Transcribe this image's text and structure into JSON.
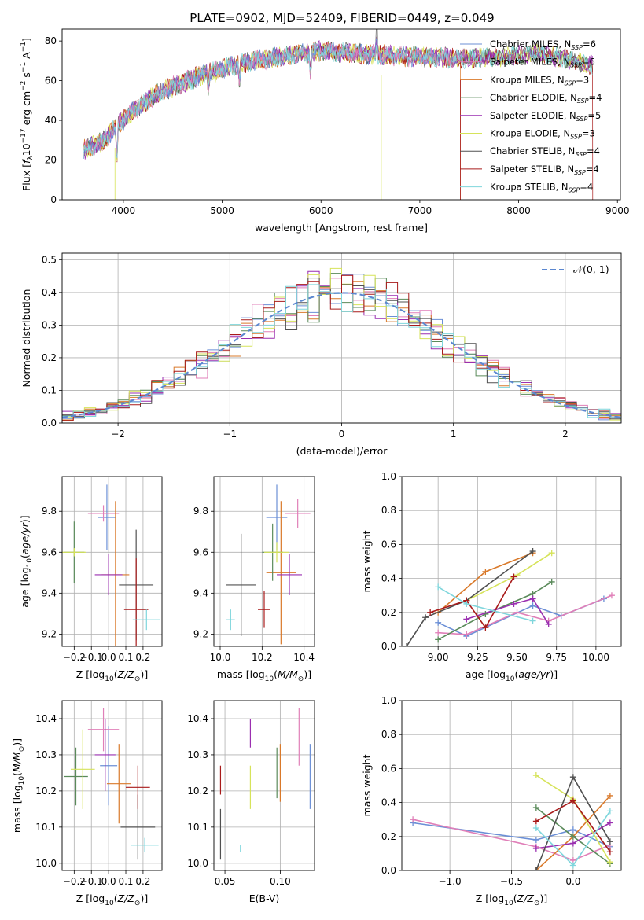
{
  "figure": {
    "title": "PLATE=0902, MJD=52409, FIBERID=0449, z=0.049"
  },
  "colors": {
    "Chabrier MILES": "#6b8fd6",
    "Salpeter MILES": "#e07fb8",
    "Kroupa MILES": "#d9792a",
    "Chabrier ELODIE": "#5a8a5a",
    "Salpeter ELODIE": "#9a2fb0",
    "Kroupa ELODIE": "#d6e35a",
    "Chabrier STELIB": "#505050",
    "Salpeter STELIB": "#a81a1a",
    "Kroupa STELIB": "#7fd6dc"
  },
  "chart_data": [
    {
      "id": "spectrum",
      "type": "line",
      "xlabel": "wavelength [Angstrom, rest frame]",
      "ylabel_main": "Flux [",
      "xlim": [
        3380,
        9030
      ],
      "ylim": [
        0,
        86
      ],
      "xticks": [
        4000,
        5000,
        6000,
        7000,
        8000,
        9000
      ],
      "yticks": [
        0,
        20,
        40,
        60,
        80
      ],
      "grid": false,
      "legend": "top-right",
      "legend_entries": [
        {
          "model": "Chabrier MILES",
          "label": "Chabrier MILES, N",
          "nssp": "6"
        },
        {
          "model": "Salpeter MILES",
          "label": "Salpeter MILES, N",
          "nssp": "6"
        },
        {
          "model": "Kroupa MILES",
          "label": "Kroupa MILES, N",
          "nssp": "3"
        },
        {
          "model": "Chabrier ELODIE",
          "label": "Chabrier ELODIE, N",
          "nssp": "4"
        },
        {
          "model": "Salpeter ELODIE",
          "label": "Salpeter ELODIE, N",
          "nssp": "5"
        },
        {
          "model": "Kroupa ELODIE",
          "label": "Kroupa ELODIE, N",
          "nssp": "3"
        },
        {
          "model": "Chabrier STELIB",
          "label": "Chabrier STELIB, N",
          "nssp": "4"
        },
        {
          "model": "Salpeter STELIB",
          "label": "Salpeter STELIB, N",
          "nssp": "4"
        },
        {
          "model": "Kroupa STELIB",
          "label": "Kroupa STELIB, N",
          "nssp": "4"
        }
      ],
      "continuum": {
        "x": [
          3600,
          3800,
          3950,
          4100,
          4300,
          4500,
          4800,
          5000,
          5300,
          5600,
          6000,
          6300,
          6600,
          7000,
          7400,
          7800,
          8200,
          8500,
          8700
        ],
        "y": [
          25,
          30,
          38,
          45,
          52,
          57,
          63,
          66,
          70,
          72,
          75,
          74,
          73,
          72,
          71,
          72,
          74,
          71,
          68
        ]
      },
      "features": [
        {
          "x": 3934,
          "depth": 18
        },
        {
          "x": 4861,
          "depth": 8
        },
        {
          "x": 5175,
          "depth": 10
        },
        {
          "x": 5893,
          "depth": 12
        },
        {
          "x": 6563,
          "depth": -20
        }
      ]
    },
    {
      "id": "residuals",
      "type": "histogram",
      "xlabel": "(data-model)/error",
      "ylabel": "Normed distribution",
      "xlim": [
        -2.5,
        2.5
      ],
      "ylim": [
        0,
        0.52
      ],
      "xticks": [
        -2,
        -1,
        0,
        1,
        2
      ],
      "yticks": [
        0,
        0.1,
        0.2,
        0.3,
        0.4,
        0.5
      ],
      "grid": true,
      "legend": "top-right",
      "reference_label": "𝒩(0, 1)",
      "bin_width": 0.1
    },
    {
      "id": "age-vs-Z",
      "type": "scatter",
      "xlabel": "Z [log",
      "ylabel": "age  [log",
      "xlim": [
        -0.27,
        0.31
      ],
      "ylim": [
        9.14,
        9.97
      ],
      "xticks": [
        -0.2,
        -0.1,
        0.0,
        0.1,
        0.2
      ],
      "yticks": [
        9.2,
        9.4,
        9.6,
        9.8
      ],
      "grid": true,
      "points": [
        {
          "model": "Chabrier MILES",
          "x": -0.01,
          "xerr": 0.05,
          "y": 9.77,
          "yerr": 0.16
        },
        {
          "model": "Salpeter MILES",
          "x": -0.03,
          "xerr": 0.09,
          "y": 9.79,
          "yerr": 0.04
        },
        {
          "model": "Kroupa MILES",
          "x": 0.04,
          "xerr": 0.08,
          "y": 9.49,
          "yerr": 0.36
        },
        {
          "model": "Chabrier ELODIE",
          "x": -0.2,
          "xerr": 0.06,
          "y": 9.6,
          "yerr": 0.15
        },
        {
          "model": "Salpeter ELODIE",
          "x": 0.0,
          "xerr": 0.08,
          "y": 9.49,
          "yerr": 0.1
        },
        {
          "model": "Kroupa ELODIE",
          "x": -0.2,
          "xerr": 0.07,
          "y": 9.6,
          "yerr": 0.02
        },
        {
          "model": "Chabrier STELIB",
          "x": 0.16,
          "xerr": 0.1,
          "y": 9.44,
          "yerr": 0.27
        },
        {
          "model": "Salpeter STELIB",
          "x": 0.16,
          "xerr": 0.07,
          "y": 9.32,
          "yerr": 0.25
        },
        {
          "model": "Kroupa STELIB",
          "x": 0.22,
          "xerr": 0.08,
          "y": 9.27,
          "yerr": 0.05
        }
      ]
    },
    {
      "id": "age-vs-mass",
      "type": "scatter",
      "xlabel": "mass [log",
      "ylabel": "",
      "xlim": [
        9.97,
        10.45
      ],
      "ylim": [
        9.14,
        9.97
      ],
      "xticks": [
        10.0,
        10.2,
        10.4
      ],
      "yticks": [
        9.2,
        9.4,
        9.6,
        9.8
      ],
      "grid": true,
      "points": [
        {
          "model": "Chabrier MILES",
          "x": 10.27,
          "xerr": 0.05,
          "y": 9.77,
          "yerr": 0.16
        },
        {
          "model": "Salpeter MILES",
          "x": 10.37,
          "xerr": 0.06,
          "y": 9.79,
          "yerr": 0.07
        },
        {
          "model": "Kroupa MILES",
          "x": 10.29,
          "xerr": 0.07,
          "y": 9.5,
          "yerr": 0.35
        },
        {
          "model": "Chabrier ELODIE",
          "x": 10.25,
          "xerr": 0.05,
          "y": 9.6,
          "yerr": 0.14
        },
        {
          "model": "Salpeter ELODIE",
          "x": 10.33,
          "xerr": 0.06,
          "y": 9.49,
          "yerr": 0.1
        },
        {
          "model": "Kroupa ELODIE",
          "x": 10.27,
          "xerr": 0.06,
          "y": 9.6,
          "yerr": 0.05
        },
        {
          "model": "Chabrier STELIB",
          "x": 10.1,
          "xerr": 0.07,
          "y": 9.44,
          "yerr": 0.25
        },
        {
          "model": "Salpeter STELIB",
          "x": 10.21,
          "xerr": 0.03,
          "y": 9.32,
          "yerr": 0.09
        },
        {
          "model": "Kroupa STELIB",
          "x": 10.05,
          "xerr": 0.02,
          "y": 9.27,
          "yerr": 0.05
        }
      ]
    },
    {
      "id": "mass-weight-vs-age",
      "type": "line",
      "xlabel": "age  [log",
      "ylabel": "mass weight",
      "xlim": [
        8.77,
        10.16
      ],
      "ylim": [
        0,
        1
      ],
      "xticks": [
        9.0,
        9.25,
        9.5,
        9.75,
        10.0
      ],
      "yticks": [
        0.0,
        0.2,
        0.4,
        0.6,
        0.8,
        1.0
      ],
      "grid": true,
      "series": [
        {
          "model": "Chabrier MILES",
          "x": [
            9.0,
            9.18,
            9.6,
            9.78,
            10.05
          ],
          "y": [
            0.14,
            0.06,
            0.24,
            0.18,
            0.28
          ]
        },
        {
          "model": "Salpeter MILES",
          "x": [
            9.0,
            9.18,
            9.5,
            9.7,
            10.1
          ],
          "y": [
            0.08,
            0.07,
            0.2,
            0.15,
            0.3
          ]
        },
        {
          "model": "Kroupa MILES",
          "x": [
            9.0,
            9.3,
            9.6
          ],
          "y": [
            0.2,
            0.44,
            0.55
          ]
        },
        {
          "model": "Chabrier ELODIE",
          "x": [
            9.0,
            9.3,
            9.6,
            9.72
          ],
          "y": [
            0.04,
            0.19,
            0.31,
            0.38
          ]
        },
        {
          "model": "Salpeter ELODIE",
          "x": [
            9.18,
            9.48,
            9.6,
            9.7
          ],
          "y": [
            0.16,
            0.25,
            0.28,
            0.13
          ]
        },
        {
          "model": "Kroupa ELODIE",
          "x": [
            9.18,
            9.5,
            9.72
          ],
          "y": [
            0.27,
            0.42,
            0.55
          ]
        },
        {
          "model": "Chabrier STELIB",
          "x": [
            8.8,
            8.92,
            9.18,
            9.6
          ],
          "y": [
            0.0,
            0.17,
            0.27,
            0.56
          ]
        },
        {
          "model": "Salpeter STELIB",
          "x": [
            8.95,
            9.18,
            9.3,
            9.48
          ],
          "y": [
            0.2,
            0.27,
            0.11,
            0.41
          ]
        },
        {
          "model": "Kroupa STELIB",
          "x": [
            9.0,
            9.18,
            9.6
          ],
          "y": [
            0.35,
            0.25,
            0.15
          ]
        }
      ]
    },
    {
      "id": "mass-vs-Z",
      "type": "scatter",
      "xlabel": "Z [log",
      "ylabel": "mass [log",
      "xlim": [
        -0.27,
        0.31
      ],
      "ylim": [
        9.98,
        10.45
      ],
      "xticks": [
        -0.2,
        -0.1,
        0.0,
        0.1,
        0.2
      ],
      "yticks": [
        10.0,
        10.1,
        10.2,
        10.3,
        10.4
      ],
      "grid": true,
      "points": [
        {
          "model": "Chabrier MILES",
          "x": 0.0,
          "xerr": 0.05,
          "y": 10.27,
          "yerr": 0.11
        },
        {
          "model": "Salpeter MILES",
          "x": -0.03,
          "xerr": 0.09,
          "y": 10.37,
          "yerr": 0.06
        },
        {
          "model": "Kroupa MILES",
          "x": 0.06,
          "xerr": 0.07,
          "y": 10.22,
          "yerr": 0.11
        },
        {
          "model": "Chabrier ELODIE",
          "x": -0.19,
          "xerr": 0.07,
          "y": 10.24,
          "yerr": 0.08
        },
        {
          "model": "Salpeter ELODIE",
          "x": -0.02,
          "xerr": 0.06,
          "y": 10.3,
          "yerr": 0.1
        },
        {
          "model": "Kroupa ELODIE",
          "x": -0.15,
          "xerr": 0.07,
          "y": 10.26,
          "yerr": 0.11
        },
        {
          "model": "Chabrier STELIB",
          "x": 0.17,
          "xerr": 0.1,
          "y": 10.1,
          "yerr": 0.09
        },
        {
          "model": "Salpeter STELIB",
          "x": 0.17,
          "xerr": 0.07,
          "y": 10.21,
          "yerr": 0.06
        },
        {
          "model": "Kroupa STELIB",
          "x": 0.21,
          "xerr": 0.08,
          "y": 10.05,
          "yerr": 0.02
        }
      ]
    },
    {
      "id": "mass-vs-EBV",
      "type": "scatter",
      "xlabel": "E(B-V)",
      "ylabel": "",
      "xlim": [
        0.04,
        0.131
      ],
      "ylim": [
        9.98,
        10.45
      ],
      "xticks": [
        0.05,
        0.1
      ],
      "yticks": [
        10.0,
        10.1,
        10.2,
        10.3,
        10.4
      ],
      "grid": true,
      "points": [
        {
          "model": "Chabrier MILES",
          "x": 0.127,
          "xerr": 0.0,
          "y": 10.24,
          "yerr": 0.09
        },
        {
          "model": "Salpeter MILES",
          "x": 0.117,
          "xerr": 0.0,
          "y": 10.35,
          "yerr": 0.08
        },
        {
          "model": "Kroupa MILES",
          "x": 0.1,
          "xerr": 0.0,
          "y": 10.25,
          "yerr": 0.08
        },
        {
          "model": "Chabrier ELODIE",
          "x": 0.097,
          "xerr": 0.0,
          "y": 10.25,
          "yerr": 0.07
        },
        {
          "model": "Salpeter ELODIE",
          "x": 0.073,
          "xerr": 0.0,
          "y": 10.36,
          "yerr": 0.04
        },
        {
          "model": "Kroupa ELODIE",
          "x": 0.073,
          "xerr": 0.0,
          "y": 10.21,
          "yerr": 0.06
        },
        {
          "model": "Chabrier STELIB",
          "x": 0.046,
          "xerr": 0.0,
          "y": 10.08,
          "yerr": 0.07
        },
        {
          "model": "Salpeter STELIB",
          "x": 0.046,
          "xerr": 0.0,
          "y": 10.23,
          "yerr": 0.04
        },
        {
          "model": "Kroupa STELIB",
          "x": 0.064,
          "xerr": 0.0,
          "y": 10.04,
          "yerr": 0.01
        }
      ]
    },
    {
      "id": "mass-weight-vs-Z",
      "type": "line",
      "xlabel": "Z [log",
      "ylabel": "mass weight",
      "xlim": [
        -1.39,
        0.39
      ],
      "ylim": [
        0,
        1
      ],
      "xticks": [
        -1.0,
        -0.5,
        0.0
      ],
      "yticks": [
        0.0,
        0.2,
        0.4,
        0.6,
        0.8,
        1.0
      ],
      "grid": true,
      "series": [
        {
          "model": "Chabrier MILES",
          "x": [
            -1.3,
            -0.3,
            0.0,
            0.3
          ],
          "y": [
            0.28,
            0.18,
            0.24,
            0.14
          ]
        },
        {
          "model": "Salpeter MILES",
          "x": [
            -1.3,
            -0.3,
            0.0,
            0.3
          ],
          "y": [
            0.3,
            0.14,
            0.06,
            0.15
          ]
        },
        {
          "model": "Kroupa MILES",
          "x": [
            -0.3,
            0.0,
            0.3
          ],
          "y": [
            0.0,
            0.2,
            0.44
          ]
        },
        {
          "model": "Chabrier ELODIE",
          "x": [
            -0.3,
            0.0,
            0.3
          ],
          "y": [
            0.37,
            0.2,
            0.04
          ]
        },
        {
          "model": "Salpeter ELODIE",
          "x": [
            -0.3,
            0.0,
            0.3
          ],
          "y": [
            0.13,
            0.16,
            0.28
          ]
        },
        {
          "model": "Kroupa ELODIE",
          "x": [
            -0.3,
            0.0,
            0.3
          ],
          "y": [
            0.56,
            0.42,
            0.05
          ]
        },
        {
          "model": "Chabrier STELIB",
          "x": [
            -0.3,
            0.0,
            0.3
          ],
          "y": [
            0.0,
            0.55,
            0.17
          ]
        },
        {
          "model": "Salpeter STELIB",
          "x": [
            -0.3,
            0.0,
            0.3
          ],
          "y": [
            0.29,
            0.41,
            0.11
          ]
        },
        {
          "model": "Kroupa STELIB",
          "x": [
            -0.3,
            0.0,
            0.3
          ],
          "y": [
            0.25,
            0.03,
            0.35
          ]
        }
      ]
    }
  ]
}
